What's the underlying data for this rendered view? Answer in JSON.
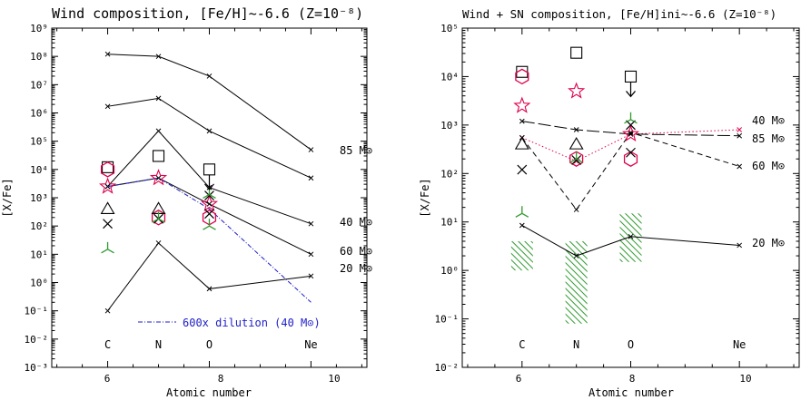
{
  "colors": {
    "red": "#e0004a",
    "green": "#2f9a2f",
    "blue": "#1e1ec8",
    "black": "#000000"
  },
  "chart_data": [
    {
      "type": "line",
      "title": "Wind composition, [Fe/H]~-6.6 (Z=10⁻⁸)",
      "xlabel": "Atomic number",
      "ylabel": "[X/Fe]",
      "xlim": [
        4.9,
        11.1
      ],
      "ylog": true,
      "ylim": [
        0.001,
        1000000000
      ],
      "ytick_labels": [
        "10⁻³",
        "10⁻²",
        "10⁻¹",
        "10⁰",
        "10¹",
        "10²",
        "10³",
        "10⁴",
        "10⁵",
        "10⁶",
        "10⁷",
        "10⁸",
        "10⁹"
      ],
      "xtick_labels": [
        "6",
        "8",
        "10"
      ],
      "element_labels": [
        {
          "x": 6,
          "label": "C"
        },
        {
          "x": 7,
          "label": "N"
        },
        {
          "x": 8,
          "label": "O"
        },
        {
          "x": 10,
          "label": "Ne"
        }
      ],
      "series": [
        {
          "name": "85 M⊙",
          "x": [
            6,
            7,
            8,
            10
          ],
          "y": [
            120000000,
            100000000,
            20000000,
            50000
          ],
          "style": "solid"
        },
        {
          "name": "",
          "x": [
            6,
            7,
            8,
            10
          ],
          "y": [
            1700000,
            3300000,
            230000,
            5000
          ],
          "style": "solid"
        },
        {
          "name": "40 M⊙",
          "x": [
            6,
            7,
            8,
            10
          ],
          "y": [
            2500,
            230000,
            2300,
            120
          ],
          "style": "solid"
        },
        {
          "name": "60 M⊙",
          "x": [
            6,
            7,
            8,
            10
          ],
          "y": [
            2500,
            5000,
            600,
            10
          ],
          "style": "solid"
        },
        {
          "name": "20 M⊙",
          "x": [
            6,
            7,
            8,
            10
          ],
          "y": [
            0.1,
            25,
            0.6,
            1.7
          ],
          "style": "solid"
        },
        {
          "name": "600x dilution (40 M⊙)",
          "x": [
            6,
            7,
            8,
            10
          ],
          "y": [
            2500,
            5000,
            400,
            0.2
          ],
          "style": "dashdot",
          "color": "blue"
        }
      ],
      "observations": [
        {
          "x": 6,
          "y": 12000,
          "marker": "square"
        },
        {
          "x": 7,
          "y": 30000,
          "marker": "square"
        },
        {
          "x": 8,
          "y": 10000,
          "marker": "square"
        },
        {
          "x": 6,
          "y": 10000,
          "marker": "hexagon"
        },
        {
          "x": 7,
          "y": 200,
          "marker": "hexagon"
        },
        {
          "x": 8,
          "y": 200,
          "marker": "hexagon"
        },
        {
          "x": 6,
          "y": 2500,
          "marker": "star"
        },
        {
          "x": 7,
          "y": 5000,
          "marker": "star"
        },
        {
          "x": 8,
          "y": 600,
          "marker": "star"
        },
        {
          "x": 6,
          "y": 400,
          "marker": "triangle"
        },
        {
          "x": 7,
          "y": 400,
          "marker": "triangle"
        },
        {
          "x": 6,
          "y": 120,
          "marker": "cross"
        },
        {
          "x": 7,
          "y": 180,
          "marker": "cross"
        },
        {
          "x": 8,
          "y": 1200,
          "marker": "cross"
        },
        {
          "x": 8,
          "y": 270,
          "marker": "cross"
        },
        {
          "x": 6,
          "y": 15,
          "marker": "tri3"
        },
        {
          "x": 7,
          "y": 180,
          "marker": "tri3"
        },
        {
          "x": 8,
          "y": 1300,
          "marker": "tri3"
        },
        {
          "x": 8,
          "y": 100,
          "marker": "tri3"
        }
      ],
      "annotations": {
        "dilution_label": "600x dilution (40 M⊙)",
        "labels": [
          "85 M⊙",
          "40 M⊙",
          "60 M⊙",
          "20 M⊙"
        ]
      }
    },
    {
      "type": "line",
      "title": "Wind + SN composition, [Fe/H]ini~-6.6 (Z=10⁻⁸)",
      "xlabel": "Atomic number",
      "ylabel": "[X/Fe]",
      "xlim": [
        4.9,
        11.1
      ],
      "ylog": true,
      "ylim": [
        0.01,
        100000
      ],
      "ytick_labels": [
        "10⁻²",
        "10⁻¹",
        "10⁰",
        "10¹",
        "10²",
        "10³",
        "10⁴",
        "10⁵"
      ],
      "xtick_labels": [
        "6",
        "8",
        "10"
      ],
      "element_labels": [
        {
          "x": 6,
          "label": "C"
        },
        {
          "x": 7,
          "label": "N"
        },
        {
          "x": 8,
          "label": "O"
        },
        {
          "x": 10,
          "label": "Ne"
        }
      ],
      "series": [
        {
          "name": "40 M⊙",
          "x": [
            6,
            7,
            8,
            10
          ],
          "y": [
            550,
            180,
            650,
            800
          ],
          "style": "dotted",
          "color": "red"
        },
        {
          "name": "85 M⊙",
          "x": [
            6,
            7,
            8,
            10
          ],
          "y": [
            1200,
            800,
            650,
            600
          ],
          "style": "longdash"
        },
        {
          "name": "60 M⊙",
          "x": [
            6,
            7,
            8,
            10
          ],
          "y": [
            550,
            18,
            700,
            140
          ],
          "style": "dashed"
        },
        {
          "name": "20 M⊙",
          "x": [
            6,
            7,
            8,
            10
          ],
          "y": [
            8.5,
            2,
            5,
            3.3
          ],
          "style": "solid"
        }
      ],
      "ranges": [
        {
          "x": 6,
          "low": 1,
          "high": 4
        },
        {
          "x": 7,
          "low": 0.08,
          "high": 4
        },
        {
          "x": 8,
          "low": 1.5,
          "high": 15
        }
      ],
      "observations": [
        {
          "x": 6,
          "y": 12500,
          "marker": "square"
        },
        {
          "x": 7,
          "y": 31000,
          "marker": "square"
        },
        {
          "x": 8,
          "y": 10000,
          "marker": "square"
        },
        {
          "x": 6,
          "y": 10000,
          "marker": "hexagon"
        },
        {
          "x": 7,
          "y": 200,
          "marker": "hexagon"
        },
        {
          "x": 8,
          "y": 200,
          "marker": "hexagon"
        },
        {
          "x": 6,
          "y": 2500,
          "marker": "star"
        },
        {
          "x": 7,
          "y": 5000,
          "marker": "star"
        },
        {
          "x": 8,
          "y": 650,
          "marker": "star"
        },
        {
          "x": 6,
          "y": 400,
          "marker": "triangle"
        },
        {
          "x": 7,
          "y": 400,
          "marker": "triangle"
        },
        {
          "x": 6,
          "y": 120,
          "marker": "cross"
        },
        {
          "x": 7,
          "y": 190,
          "marker": "cross"
        },
        {
          "x": 8,
          "y": 1000,
          "marker": "cross"
        },
        {
          "x": 8,
          "y": 270,
          "marker": "cross"
        },
        {
          "x": 6,
          "y": 15,
          "marker": "tri3"
        },
        {
          "x": 7,
          "y": 200,
          "marker": "tri3"
        },
        {
          "x": 8,
          "y": 1300,
          "marker": "tri3"
        }
      ],
      "annotations": {
        "labels": [
          "40 M⊙",
          "85 M⊙",
          "60 M⊙",
          "20 M⊙"
        ]
      }
    }
  ]
}
